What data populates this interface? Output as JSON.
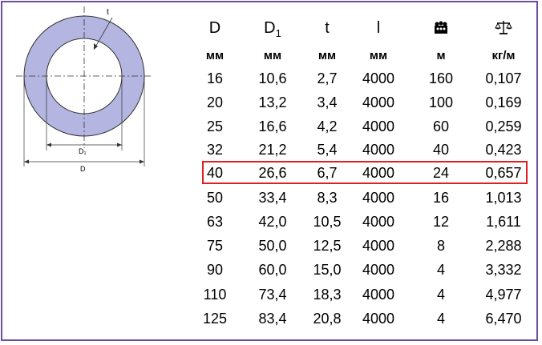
{
  "diagram": {
    "label_t": "t",
    "label_d1": "D₁",
    "label_d": "D"
  },
  "colors": {
    "ring_fill": "#b4b5e0",
    "frame": "#6a4fa0",
    "highlight": "#e02020"
  },
  "table": {
    "headers": [
      "D",
      "D1",
      "t",
      "l",
      "bundle-icon",
      "scale-icon"
    ],
    "units": [
      "мм",
      "мм",
      "мм",
      "мм",
      "м",
      "кг/м"
    ],
    "rows": [
      [
        "16",
        "10,6",
        "2,7",
        "4000",
        "160",
        "0,107"
      ],
      [
        "20",
        "13,2",
        "3,4",
        "4000",
        "100",
        "0,169"
      ],
      [
        "25",
        "16,6",
        "4,2",
        "4000",
        "60",
        "0,259"
      ],
      [
        "32",
        "21,2",
        "5,4",
        "4000",
        "40",
        "0,423"
      ],
      [
        "40",
        "26,6",
        "6,7",
        "4000",
        "24",
        "0,657"
      ],
      [
        "50",
        "33,4",
        "8,3",
        "4000",
        "16",
        "1,013"
      ],
      [
        "63",
        "42,0",
        "10,5",
        "4000",
        "12",
        "1,611"
      ],
      [
        "75",
        "50,0",
        "12,5",
        "4000",
        "8",
        "2,288"
      ],
      [
        "90",
        "60,0",
        "15,0",
        "4000",
        "4",
        "3,332"
      ],
      [
        "110",
        "73,4",
        "18,3",
        "4000",
        "4",
        "4,977"
      ],
      [
        "125",
        "83,4",
        "20,8",
        "4000",
        "4",
        "6,470"
      ]
    ],
    "highlighted_row": 4
  }
}
